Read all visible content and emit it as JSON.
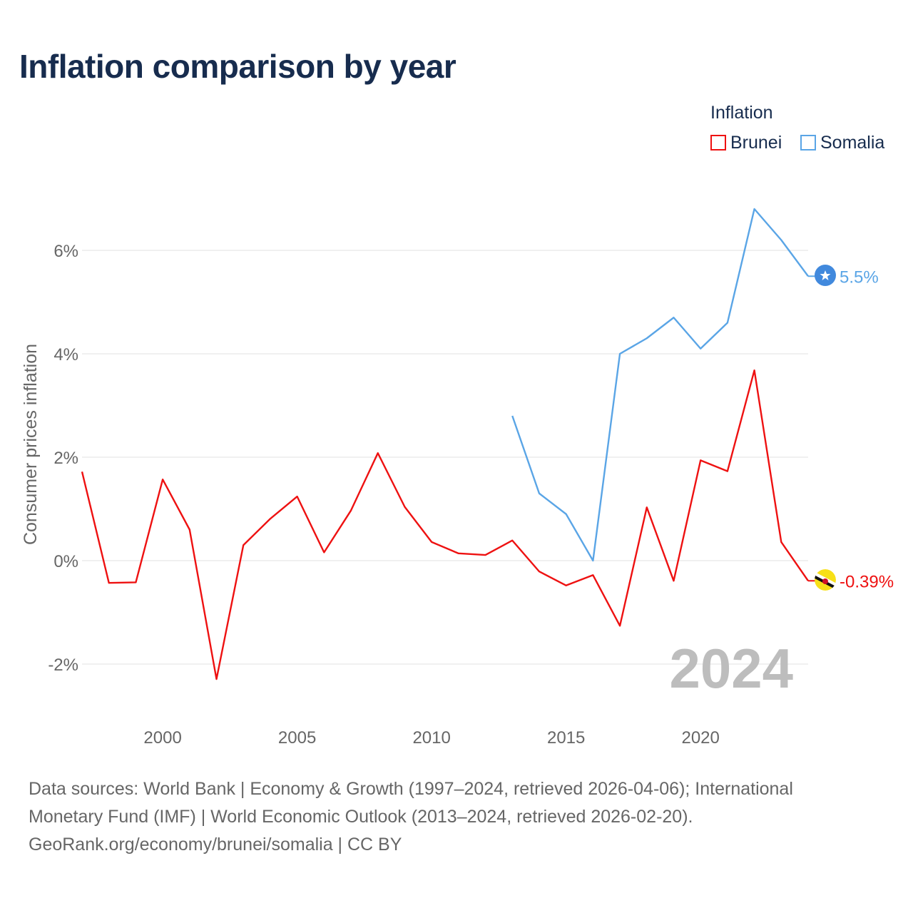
{
  "title": "Inflation comparison by year",
  "legend": {
    "title": "Inflation",
    "items": [
      {
        "label": "Brunei",
        "color": "#ee1111"
      },
      {
        "label": "Somalia",
        "color": "#5aa5e6"
      }
    ]
  },
  "chart_data": {
    "type": "line",
    "title": "Inflation comparison by year",
    "xlabel": "",
    "ylabel": "Consumer prices inflation",
    "xlim": [
      1997,
      2024
    ],
    "ylim": [
      -2.9,
      7.2
    ],
    "x_ticks": [
      2000,
      2005,
      2010,
      2015,
      2020
    ],
    "x_tick_labels": [
      "2000",
      "2005",
      "2010",
      "2015",
      "2020"
    ],
    "y_ticks": [
      -2,
      0,
      2,
      4,
      6
    ],
    "y_tick_labels": [
      "-2%",
      "0%",
      "2%",
      "4%",
      "6%"
    ],
    "grid": true,
    "year_watermark": "2024",
    "series": [
      {
        "name": "Brunei",
        "color": "#ee1111",
        "end_label": "-0.39%",
        "x": [
          1997,
          1998,
          1999,
          2000,
          2001,
          2002,
          2003,
          2004,
          2005,
          2006,
          2007,
          2008,
          2009,
          2010,
          2011,
          2012,
          2013,
          2014,
          2015,
          2016,
          2017,
          2018,
          2019,
          2020,
          2021,
          2022,
          2023,
          2024
        ],
        "values": [
          1.72,
          -0.43,
          -0.42,
          1.57,
          0.6,
          -2.29,
          0.3,
          0.81,
          1.24,
          0.16,
          0.97,
          2.08,
          1.04,
          0.36,
          0.14,
          0.11,
          0.39,
          -0.21,
          -0.48,
          -0.28,
          -1.26,
          1.03,
          -0.39,
          1.94,
          1.73,
          3.68,
          0.36,
          -0.39
        ]
      },
      {
        "name": "Somalia",
        "color": "#5aa5e6",
        "end_label": "5.5%",
        "x": [
          2013,
          2014,
          2015,
          2016,
          2017,
          2018,
          2019,
          2020,
          2021,
          2022,
          2023,
          2024
        ],
        "values": [
          2.8,
          1.3,
          0.9,
          0.0,
          4.0,
          4.3,
          4.7,
          4.1,
          4.6,
          6.8,
          6.2,
          5.5
        ]
      }
    ]
  },
  "footer": {
    "line1": "Data sources: World Bank | Economy & Growth (1997–2024, retrieved 2026-04-06); International",
    "line2": "Monetary Fund (IMF) | World Economic Outlook (2013–2024, retrieved 2026-02-20).",
    "line3": "GeoRank.org/economy/brunei/somalia | CC BY"
  }
}
